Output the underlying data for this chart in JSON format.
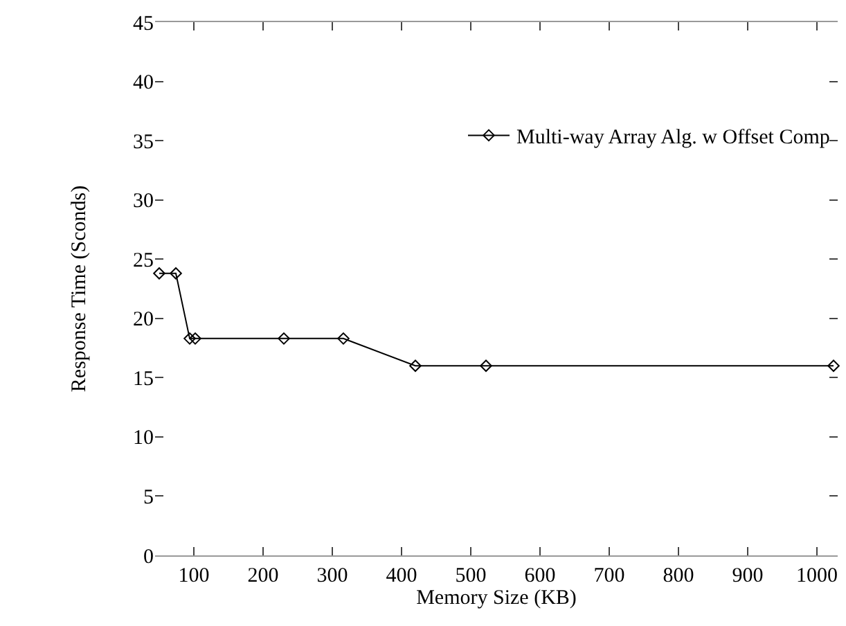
{
  "chart_data": {
    "type": "line",
    "xlabel": "Memory Size (KB)",
    "ylabel": "Response Time (Sconds)",
    "x": [
      50,
      74,
      94,
      102,
      230,
      316,
      420,
      522,
      1024
    ],
    "series": [
      {
        "name": "Multi-way Array Alg. w Offset Comp",
        "color": "#000000",
        "values": [
          23.8,
          23.8,
          18.3,
          18.3,
          18.3,
          18.3,
          16.0,
          16.0,
          16.0
        ]
      }
    ],
    "xlim": [
      44,
      1030
    ],
    "xticks": [
      100,
      200,
      300,
      400,
      500,
      600,
      700,
      800,
      900,
      1000
    ],
    "ylim": [
      0,
      45
    ],
    "yticks": [
      0,
      5,
      10,
      15,
      20,
      25,
      30,
      35,
      40,
      45
    ],
    "grid": false,
    "legend": "top right",
    "marker": "diamond",
    "line_style": "solid"
  }
}
